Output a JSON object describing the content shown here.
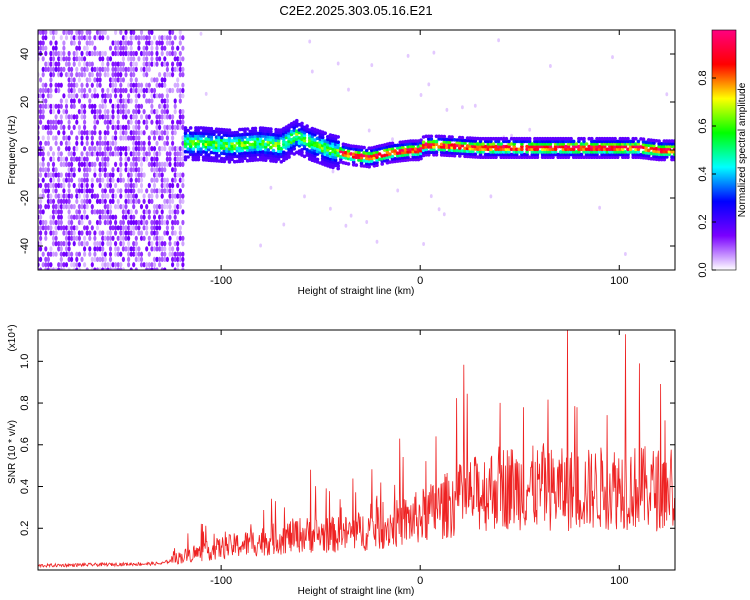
{
  "title": "C2E2.2025.303.05.16.E21",
  "chart_data": [
    {
      "type": "heatmap",
      "xlabel": "Height of straight line (km)",
      "ylabel": "Frequency (Hz)",
      "xlim": [
        -192,
        128
      ],
      "ylim": [
        -50,
        50
      ],
      "xticks": [
        -100,
        0,
        100
      ],
      "yticks": [
        -40,
        -20,
        0,
        20,
        40
      ],
      "colorbar": {
        "label": "Normalized spectral amplitude",
        "range": [
          0,
          1
        ],
        "ticks": [
          0.0,
          0.2,
          0.4,
          0.6,
          0.8
        ],
        "tick_labels": [
          "0.0",
          "0.2",
          "0.4",
          "0.6",
          "0.8"
        ],
        "colors": [
          "#ffffff",
          "#7a00ff",
          "#0000ff",
          "#00ffff",
          "#00ff00",
          "#ffff00",
          "#ff0000",
          "#ff0080"
        ]
      },
      "noise_region_x": [
        -192,
        -118
      ],
      "ridge": {
        "x": [
          -125,
          -110,
          -95,
          -80,
          -70,
          -62,
          -55,
          -45,
          -35,
          -25,
          -15,
          -5,
          0,
          2,
          10,
          30,
          50,
          70,
          90,
          110,
          120,
          128
        ],
        "y": [
          3,
          3,
          2,
          3,
          2,
          6,
          3,
          0,
          -2,
          -3,
          -1,
          0,
          0,
          2,
          2,
          1,
          1,
          1,
          1,
          1,
          0,
          0
        ]
      }
    },
    {
      "type": "line",
      "xlabel": "Height of straight line (km)",
      "ylabel": "SNR (10 * v/v)",
      "scale_label": "(x10⁴)",
      "xlim": [
        -192,
        128
      ],
      "ylim": [
        0,
        1.15
      ],
      "xticks": [
        -100,
        0,
        100
      ],
      "yticks": [
        0.2,
        0.4,
        0.6,
        0.8,
        1.0
      ],
      "ytick_labels": [
        "0.2",
        "0.4",
        "0.6",
        "0.8",
        "1.0"
      ],
      "color": "#ee2222",
      "trend": {
        "x": [
          -192,
          -130,
          -120,
          -100,
          -80,
          -60,
          -40,
          -20,
          0,
          20,
          40,
          60,
          80,
          100,
          128
        ],
        "y": [
          0.02,
          0.03,
          0.06,
          0.1,
          0.13,
          0.16,
          0.16,
          0.19,
          0.24,
          0.32,
          0.38,
          0.37,
          0.36,
          0.38,
          0.36
        ]
      },
      "spikes": [
        {
          "x": -55,
          "y": 0.48
        },
        {
          "x": 8,
          "y": 0.64
        },
        {
          "x": 52,
          "y": 0.78
        },
        {
          "x": 74,
          "y": 1.18
        },
        {
          "x": 110,
          "y": 0.99
        },
        {
          "x": 103,
          "y": 1.13
        }
      ]
    }
  ]
}
